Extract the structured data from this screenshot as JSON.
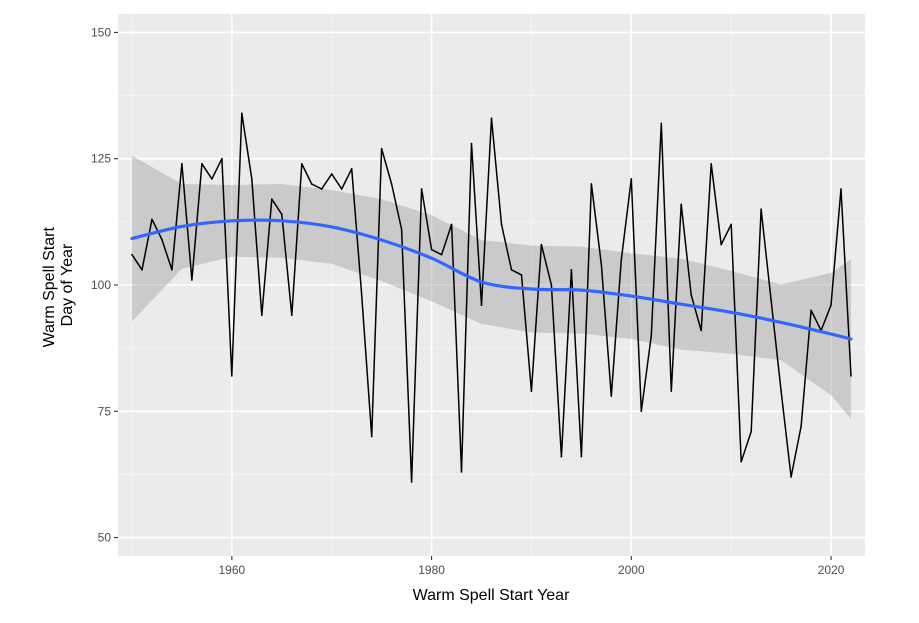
{
  "chart_data": {
    "type": "line",
    "xlabel": "Warm Spell Start Year",
    "ylabel_lines": [
      "Warm Spell Start",
      "Day of Year"
    ],
    "xlim": [
      1948.6,
      2023.4
    ],
    "ylim": [
      46.35,
      153.65
    ],
    "x_ticks": [
      1960,
      1980,
      2000,
      2020
    ],
    "y_ticks": [
      50,
      75,
      100,
      125,
      150
    ],
    "grid": true,
    "series": [
      {
        "x": [
          1950,
          1951,
          1952,
          1953,
          1954,
          1955,
          1956,
          1957,
          1958,
          1959,
          1960,
          1961,
          1962,
          1963,
          1964,
          1965,
          1966,
          1967,
          1968,
          1969,
          1970,
          1971,
          1972,
          1973,
          1974,
          1975,
          1976,
          1977,
          1978,
          1979,
          1980,
          1981,
          1982,
          1983,
          1984,
          1985,
          1986,
          1987,
          1988,
          1989,
          1990,
          1991,
          1992,
          1993,
          1994,
          1995,
          1996,
          1997,
          1998,
          1999,
          2000,
          2001,
          2002,
          2003,
          2004,
          2005,
          2006,
          2007,
          2008,
          2009,
          2010,
          2011,
          2012,
          2013,
          2014,
          2015,
          2016,
          2017,
          2018,
          2019,
          2020,
          2021,
          2022
        ],
        "values": [
          106,
          103,
          113,
          109,
          103,
          124,
          101,
          124,
          121,
          125,
          82,
          134,
          121,
          94,
          117,
          114,
          94,
          124,
          120,
          119,
          122,
          119,
          123,
          98,
          70,
          127,
          120,
          111,
          61,
          119,
          107,
          106,
          112,
          63,
          128,
          96,
          133,
          112,
          103,
          102,
          79,
          108,
          100,
          66,
          103,
          66,
          120,
          104,
          78,
          105,
          121,
          75,
          90,
          132,
          79,
          116,
          98,
          91,
          124,
          108,
          112,
          65,
          71,
          115,
          97,
          79,
          62,
          72,
          95,
          91,
          96,
          119,
          82
        ]
      }
    ],
    "smooth": {
      "x": [
        1950,
        1955,
        1960,
        1965,
        1970,
        1975,
        1980,
        1985,
        1990,
        1995,
        2000,
        2005,
        2010,
        2015,
        2020,
        2022
      ],
      "fit": [
        109.2,
        111.6,
        112.7,
        112.7,
        111.5,
        108.9,
        105.3,
        100.6,
        99.2,
        99.0,
        97.8,
        96.2,
        94.6,
        92.6,
        90.3,
        89.3
      ],
      "lower": [
        92.8,
        103.2,
        105.6,
        105.4,
        104.2,
        100.8,
        96.8,
        92.3,
        90.6,
        90.4,
        89.3,
        87.2,
        86.4,
        85.1,
        78.2,
        73.5
      ],
      "upper": [
        125.6,
        120.0,
        119.8,
        120.0,
        118.8,
        117.0,
        113.8,
        108.9,
        107.8,
        107.6,
        106.3,
        105.2,
        102.8,
        100.1,
        102.4,
        105.1
      ]
    },
    "colors": {
      "panel": "#ebebeb",
      "grid_major": "#ffffff",
      "grid_minor": "#f4f4f4",
      "line": "#000000",
      "smooth": "#3366ff",
      "ribbon": "#999999"
    }
  }
}
